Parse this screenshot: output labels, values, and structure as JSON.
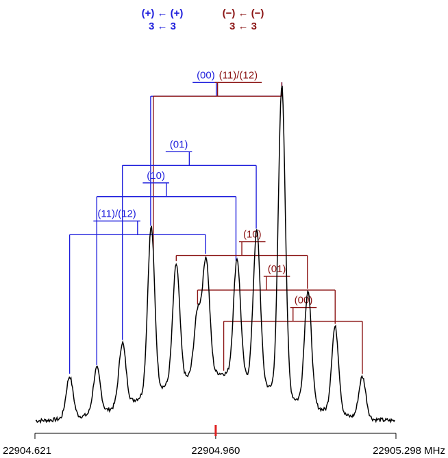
{
  "header": {
    "blue_line1": "(+) ← (+)",
    "blue_line2": "3 ← 3",
    "red_line1": "(−) ← (−)",
    "red_line2": "3 ← 3"
  },
  "colors": {
    "blue": "#1f1fdc",
    "red": "#8b1414",
    "marker": "#e02020",
    "spectrum": "#000000"
  },
  "chart_data": {
    "type": "line",
    "xlim": [
      22904.621,
      22905.298
    ],
    "x_unit": "MHz",
    "x_ticks": [
      {
        "value": 22904.621,
        "label": "22904.621"
      },
      {
        "value": 22904.96,
        "label": "22904.960"
      },
      {
        "value": 22905.298,
        "label": "22905.298 MHz"
      }
    ],
    "center_marker": 22904.96,
    "peaks": [
      {
        "x": 22904.686,
        "h": 0.12
      },
      {
        "x": 22904.737,
        "h": 0.13
      },
      {
        "x": 22904.785,
        "h": 0.18
      },
      {
        "x": 22904.839,
        "h": 0.48
      },
      {
        "x": 22904.886,
        "h": 0.34
      },
      {
        "x": 22904.926,
        "h": 0.18
      },
      {
        "x": 22904.942,
        "h": 0.33
      },
      {
        "x": 22905.0,
        "h": 0.34
      },
      {
        "x": 22905.037,
        "h": 0.44
      },
      {
        "x": 22905.084,
        "h": 0.89
      },
      {
        "x": 22905.133,
        "h": 0.33
      },
      {
        "x": 22905.184,
        "h": 0.25
      },
      {
        "x": 22905.235,
        "h": 0.12
      }
    ],
    "groups": [
      {
        "label": "(00)",
        "series": "blue",
        "components": [
          {
            "x": 22904.838,
            "label_x": 22904.838
          },
          {
            "x": 22905.084,
            "label_x": 22905.084
          }
        ],
        "bar_y": 0.94,
        "bar_x": [
          22904.7,
          22904.86
        ]
      },
      {
        "label": "(11)/(12)",
        "series": "red",
        "components": [
          {
            "x": 22904.843
          },
          {
            "x": 22905.084
          }
        ],
        "bar_y": 0.94,
        "bar_x": [
          22904.9,
          22905.1
        ]
      },
      {
        "label": "(01)",
        "series": "blue",
        "components": [
          {
            "x": 22904.785
          },
          {
            "x": 22905.036
          }
        ],
        "bar_y": 0.74
      },
      {
        "label": "(10)",
        "series": "blue",
        "components": [
          {
            "x": 22904.737
          },
          {
            "x": 22904.998
          }
        ],
        "bar_y": 0.65
      },
      {
        "label": "(11)/(12)",
        "series": "blue",
        "components": [
          {
            "x": 22904.686
          },
          {
            "x": 22904.941
          }
        ],
        "bar_y": 0.54
      },
      {
        "label": "(10)",
        "series": "red",
        "components": [
          {
            "x": 22904.886
          },
          {
            "x": 22905.132
          }
        ],
        "bar_y": 0.48
      },
      {
        "label": "(01)",
        "series": "red",
        "components": [
          {
            "x": 22904.926
          },
          {
            "x": 22905.184
          }
        ],
        "bar_y": 0.38
      },
      {
        "label": "(00)",
        "series": "red",
        "components": [
          {
            "x": 22904.975
          },
          {
            "x": 22905.235
          }
        ],
        "bar_y": 0.29
      }
    ]
  }
}
